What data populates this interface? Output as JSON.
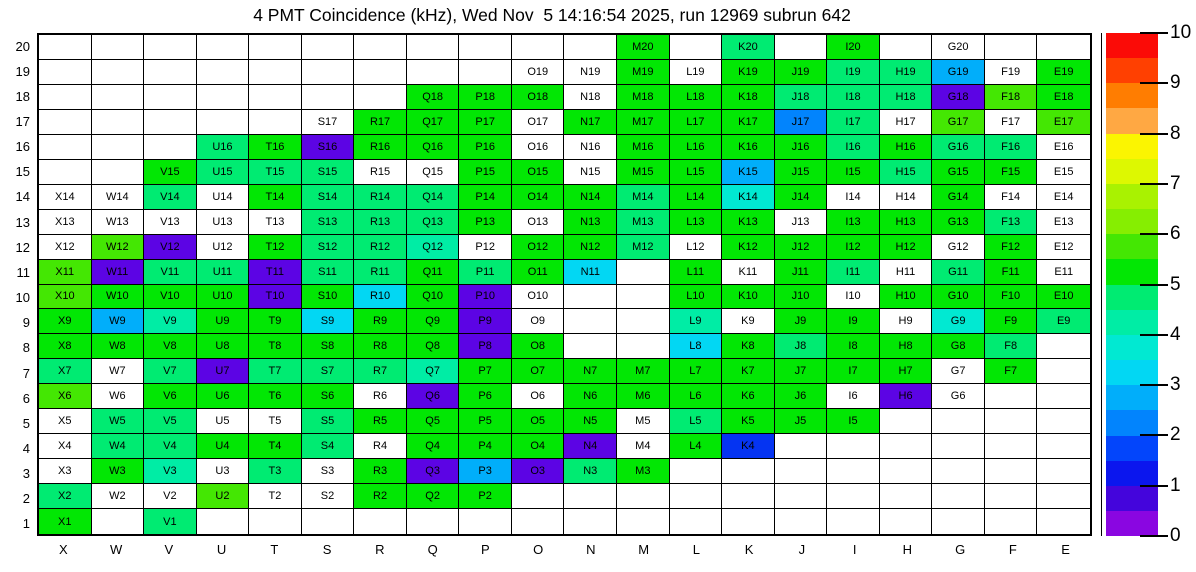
{
  "title": "4 PMT Coincidence (kHz), Wed Nov  5 14:16:54 2025, run 12969 subrun 642",
  "chart_data": {
    "type": "heatmap",
    "title": "4 PMT Coincidence (kHz), Wed Nov  5 14:16:54 2025, run 12969 subrun 642",
    "columns": [
      "X",
      "W",
      "V",
      "U",
      "T",
      "S",
      "R",
      "Q",
      "P",
      "O",
      "N",
      "M",
      "L",
      "K",
      "J",
      "I",
      "H",
      "G",
      "F",
      "E"
    ],
    "rows": [
      20,
      19,
      18,
      17,
      16,
      15,
      14,
      13,
      12,
      11,
      10,
      9,
      8,
      7,
      6,
      5,
      4,
      3,
      2,
      1
    ],
    "colorbar": {
      "min": 0,
      "max": 10,
      "ticks": [
        10,
        9,
        8,
        7,
        6,
        5,
        4,
        3,
        2,
        1,
        0
      ],
      "palette_bottom_to_top": [
        "#8a06e1",
        "#4405dc",
        "#0b16ee",
        "#0345fb",
        "#0284fd",
        "#01aefa",
        "#02d7f3",
        "#01e9d2",
        "#00eda5",
        "#00eb72",
        "#02e704",
        "#44e703",
        "#86ee01",
        "#a9f201",
        "#ddf801",
        "#fbf501",
        "#ffa843",
        "#ff7d01",
        "#ff4001",
        "#fb0b07"
      ]
    },
    "colors": {
      "g": "#02e704",
      "g2": "#44e703",
      "sg": "#00eb72",
      "mint": "#00eda5",
      "teal": "#01e9d2",
      "cyan": "#02d7f3",
      "lblue": "#01aefa",
      "blue": "#0284fd",
      "dblue": "#0534f2",
      "purple": "#5c04e4",
      "w": "#ffffff"
    },
    "color_values_kHz": {
      "g": 5.25,
      "g2": 5.75,
      "sg": 4.75,
      "mint": 4.25,
      "teal": 3.75,
      "cyan": 3.25,
      "lblue": 2.75,
      "blue": 2.25,
      "dblue": 1.75,
      "purple": 0.25,
      "w": 0
    },
    "cells": [
      [
        null,
        null,
        null,
        null,
        null,
        null,
        null,
        null,
        null,
        null,
        null,
        [
          "M20",
          "g"
        ],
        null,
        [
          "K20",
          "sg"
        ],
        null,
        [
          "I20",
          "g"
        ],
        null,
        [
          "G20",
          "w"
        ],
        null,
        null
      ],
      [
        null,
        null,
        null,
        null,
        null,
        null,
        null,
        null,
        null,
        [
          "O19",
          "w"
        ],
        [
          "N19",
          "w"
        ],
        [
          "M19",
          "g"
        ],
        [
          "L19",
          "w"
        ],
        [
          "K19",
          "g"
        ],
        [
          "J19",
          "g"
        ],
        [
          "I19",
          "sg"
        ],
        [
          "H19",
          "sg"
        ],
        [
          "G19",
          "lblue"
        ],
        [
          "F19",
          "w"
        ],
        [
          "E19",
          "g"
        ]
      ],
      [
        null,
        null,
        null,
        null,
        null,
        null,
        null,
        [
          "Q18",
          "g"
        ],
        [
          "P18",
          "g"
        ],
        [
          "O18",
          "g"
        ],
        [
          "N18",
          "w"
        ],
        [
          "M18",
          "g"
        ],
        [
          "L18",
          "g"
        ],
        [
          "K18",
          "g"
        ],
        [
          "J18",
          "sg"
        ],
        [
          "I18",
          "sg"
        ],
        [
          "H18",
          "sg"
        ],
        [
          "G18",
          "purple"
        ],
        [
          "F18",
          "g2"
        ],
        [
          "E18",
          "g"
        ]
      ],
      [
        null,
        null,
        null,
        null,
        null,
        [
          "S17",
          "w"
        ],
        [
          "R17",
          "g"
        ],
        [
          "Q17",
          "g"
        ],
        [
          "P17",
          "g"
        ],
        [
          "O17",
          "w"
        ],
        [
          "N17",
          "g"
        ],
        [
          "M17",
          "g"
        ],
        [
          "L17",
          "g"
        ],
        [
          "K17",
          "g"
        ],
        [
          "J17",
          "blue"
        ],
        [
          "I17",
          "sg"
        ],
        [
          "H17",
          "w"
        ],
        [
          "G17",
          "g2"
        ],
        [
          "F17",
          "w"
        ],
        [
          "E17",
          "g2"
        ]
      ],
      [
        null,
        null,
        null,
        [
          "U16",
          "sg"
        ],
        [
          "T16",
          "g"
        ],
        [
          "S16",
          "purple"
        ],
        [
          "R16",
          "g"
        ],
        [
          "Q16",
          "g"
        ],
        [
          "P16",
          "g"
        ],
        [
          "O16",
          "w"
        ],
        [
          "N16",
          "w"
        ],
        [
          "M16",
          "g"
        ],
        [
          "L16",
          "g"
        ],
        [
          "K16",
          "g"
        ],
        [
          "J16",
          "g"
        ],
        [
          "I16",
          "sg"
        ],
        [
          "H16",
          "g"
        ],
        [
          "G16",
          "sg"
        ],
        [
          "F16",
          "sg"
        ],
        [
          "E16",
          "w"
        ]
      ],
      [
        null,
        null,
        [
          "V15",
          "g"
        ],
        [
          "U15",
          "sg"
        ],
        [
          "T15",
          "sg"
        ],
        [
          "S15",
          "sg"
        ],
        [
          "R15",
          "w"
        ],
        [
          "Q15",
          "w"
        ],
        [
          "P15",
          "g"
        ],
        [
          "O15",
          "g"
        ],
        [
          "N15",
          "w"
        ],
        [
          "M15",
          "g"
        ],
        [
          "L15",
          "g"
        ],
        [
          "K15",
          "lblue"
        ],
        [
          "J15",
          "g"
        ],
        [
          "I15",
          "g"
        ],
        [
          "H15",
          "sg"
        ],
        [
          "G15",
          "g"
        ],
        [
          "F15",
          "g"
        ],
        [
          "E15",
          "w"
        ]
      ],
      [
        [
          "X14",
          "w"
        ],
        [
          "W14",
          "w"
        ],
        [
          "V14",
          "sg"
        ],
        [
          "U14",
          "w"
        ],
        [
          "T14",
          "g"
        ],
        [
          "S14",
          "sg"
        ],
        [
          "R14",
          "sg"
        ],
        [
          "Q14",
          "sg"
        ],
        [
          "P14",
          "g"
        ],
        [
          "O14",
          "g"
        ],
        [
          "N14",
          "g"
        ],
        [
          "M14",
          "sg"
        ],
        [
          "L14",
          "g"
        ],
        [
          "K14",
          "teal"
        ],
        [
          "J14",
          "g"
        ],
        [
          "I14",
          "w"
        ],
        [
          "H14",
          "w"
        ],
        [
          "G14",
          "g"
        ],
        [
          "F14",
          "w"
        ],
        [
          "E14",
          "w"
        ]
      ],
      [
        [
          "X13",
          "w"
        ],
        [
          "W13",
          "w"
        ],
        [
          "V13",
          "w"
        ],
        [
          "U13",
          "w"
        ],
        [
          "T13",
          "w"
        ],
        [
          "S13",
          "sg"
        ],
        [
          "R13",
          "sg"
        ],
        [
          "Q13",
          "sg"
        ],
        [
          "P13",
          "g"
        ],
        [
          "O13",
          "w"
        ],
        [
          "N13",
          "g"
        ],
        [
          "M13",
          "sg"
        ],
        [
          "L13",
          "g"
        ],
        [
          "K13",
          "g"
        ],
        [
          "J13",
          "w"
        ],
        [
          "I13",
          "g"
        ],
        [
          "H13",
          "g"
        ],
        [
          "G13",
          "g"
        ],
        [
          "F13",
          "sg"
        ],
        [
          "E13",
          "w"
        ]
      ],
      [
        [
          "X12",
          "w"
        ],
        [
          "W12",
          "g2"
        ],
        [
          "V12",
          "purple"
        ],
        [
          "U12",
          "w"
        ],
        [
          "T12",
          "g"
        ],
        [
          "S12",
          "sg"
        ],
        [
          "R12",
          "sg"
        ],
        [
          "Q12",
          "mint"
        ],
        [
          "P12",
          "w"
        ],
        [
          "O12",
          "g"
        ],
        [
          "N12",
          "g"
        ],
        [
          "M12",
          "sg"
        ],
        [
          "L12",
          "w"
        ],
        [
          "K12",
          "g"
        ],
        [
          "J12",
          "g"
        ],
        [
          "I12",
          "g"
        ],
        [
          "H12",
          "g"
        ],
        [
          "G12",
          "w"
        ],
        [
          "F12",
          "g"
        ],
        [
          "E12",
          "w"
        ]
      ],
      [
        [
          "X11",
          "g2"
        ],
        [
          "W11",
          "purple"
        ],
        [
          "V11",
          "sg"
        ],
        [
          "U11",
          "sg"
        ],
        [
          "T11",
          "purple"
        ],
        [
          "S11",
          "sg"
        ],
        [
          "R11",
          "sg"
        ],
        [
          "Q11",
          "g"
        ],
        [
          "P11",
          "sg"
        ],
        [
          "O11",
          "g"
        ],
        [
          "N11",
          "cyan"
        ],
        null,
        [
          "L11",
          "g"
        ],
        [
          "K11",
          "w"
        ],
        [
          "J11",
          "g"
        ],
        [
          "I11",
          "sg"
        ],
        [
          "H11",
          "w"
        ],
        [
          "G11",
          "sg"
        ],
        [
          "F11",
          "g"
        ],
        [
          "E11",
          "w"
        ]
      ],
      [
        [
          "X10",
          "g2"
        ],
        [
          "W10",
          "g"
        ],
        [
          "V10",
          "g"
        ],
        [
          "U10",
          "g"
        ],
        [
          "T10",
          "purple"
        ],
        [
          "S10",
          "g"
        ],
        [
          "R10",
          "cyan"
        ],
        [
          "Q10",
          "g"
        ],
        [
          "P10",
          "purple"
        ],
        [
          "O10",
          "w"
        ],
        null,
        null,
        [
          "L10",
          "g"
        ],
        [
          "K10",
          "g"
        ],
        [
          "J10",
          "g"
        ],
        [
          "I10",
          "w"
        ],
        [
          "H10",
          "g"
        ],
        [
          "G10",
          "g"
        ],
        [
          "F10",
          "g"
        ],
        [
          "E10",
          "g"
        ]
      ],
      [
        [
          "X9",
          "g"
        ],
        [
          "W9",
          "lblue"
        ],
        [
          "V9",
          "mint"
        ],
        [
          "U9",
          "g"
        ],
        [
          "T9",
          "g"
        ],
        [
          "S9",
          "cyan"
        ],
        [
          "R9",
          "g"
        ],
        [
          "Q9",
          "g"
        ],
        [
          "P9",
          "purple"
        ],
        [
          "O9",
          "w"
        ],
        null,
        null,
        [
          "L9",
          "mint"
        ],
        [
          "K9",
          "w"
        ],
        [
          "J9",
          "g"
        ],
        [
          "I9",
          "g"
        ],
        [
          "H9",
          "w"
        ],
        [
          "G9",
          "teal"
        ],
        [
          "F9",
          "g"
        ],
        [
          "E9",
          "sg"
        ]
      ],
      [
        [
          "X8",
          "g"
        ],
        [
          "W8",
          "g"
        ],
        [
          "V8",
          "g"
        ],
        [
          "U8",
          "g"
        ],
        [
          "T8",
          "g"
        ],
        [
          "S8",
          "g"
        ],
        [
          "R8",
          "g"
        ],
        [
          "Q8",
          "g"
        ],
        [
          "P8",
          "purple"
        ],
        [
          "O8",
          "g"
        ],
        null,
        null,
        [
          "L8",
          "cyan"
        ],
        [
          "K8",
          "g"
        ],
        [
          "J8",
          "sg"
        ],
        [
          "I8",
          "g"
        ],
        [
          "H8",
          "g"
        ],
        [
          "G8",
          "g"
        ],
        [
          "F8",
          "sg"
        ],
        null
      ],
      [
        [
          "X7",
          "sg"
        ],
        [
          "W7",
          "w"
        ],
        [
          "V7",
          "sg"
        ],
        [
          "U7",
          "purple"
        ],
        [
          "T7",
          "sg"
        ],
        [
          "S7",
          "sg"
        ],
        [
          "R7",
          "sg"
        ],
        [
          "Q7",
          "mint"
        ],
        [
          "P7",
          "g"
        ],
        [
          "O7",
          "g"
        ],
        [
          "N7",
          "g"
        ],
        [
          "M7",
          "g"
        ],
        [
          "L7",
          "g"
        ],
        [
          "K7",
          "g"
        ],
        [
          "J7",
          "g"
        ],
        [
          "I7",
          "g"
        ],
        [
          "H7",
          "g"
        ],
        [
          "G7",
          "w"
        ],
        [
          "F7",
          "g"
        ],
        null
      ],
      [
        [
          "X6",
          "g2"
        ],
        [
          "W6",
          "w"
        ],
        [
          "V6",
          "g"
        ],
        [
          "U6",
          "g"
        ],
        [
          "T6",
          "g"
        ],
        [
          "S6",
          "g"
        ],
        [
          "R6",
          "w"
        ],
        [
          "Q6",
          "purple"
        ],
        [
          "P6",
          "g"
        ],
        [
          "O6",
          "w"
        ],
        [
          "N6",
          "g"
        ],
        [
          "M6",
          "g"
        ],
        [
          "L6",
          "g"
        ],
        [
          "K6",
          "g"
        ],
        [
          "J6",
          "g"
        ],
        [
          "I6",
          "w"
        ],
        [
          "H6",
          "purple"
        ],
        [
          "G6",
          "w"
        ],
        null,
        null
      ],
      [
        [
          "X5",
          "w"
        ],
        [
          "W5",
          "sg"
        ],
        [
          "V5",
          "sg"
        ],
        [
          "U5",
          "w"
        ],
        [
          "T5",
          "w"
        ],
        [
          "S5",
          "sg"
        ],
        [
          "R5",
          "g"
        ],
        [
          "Q5",
          "g"
        ],
        [
          "P5",
          "g"
        ],
        [
          "O5",
          "g"
        ],
        [
          "N5",
          "g"
        ],
        [
          "M5",
          "w"
        ],
        [
          "L5",
          "sg"
        ],
        [
          "K5",
          "g"
        ],
        [
          "J5",
          "g"
        ],
        [
          "I5",
          "g"
        ],
        null,
        null,
        null,
        null
      ],
      [
        [
          "X4",
          "w"
        ],
        [
          "W4",
          "sg"
        ],
        [
          "V4",
          "sg"
        ],
        [
          "U4",
          "g"
        ],
        [
          "T4",
          "g"
        ],
        [
          "S4",
          "sg"
        ],
        [
          "R4",
          "w"
        ],
        [
          "Q4",
          "g"
        ],
        [
          "P4",
          "g"
        ],
        [
          "O4",
          "g"
        ],
        [
          "N4",
          "purple"
        ],
        [
          "M4",
          "w"
        ],
        [
          "L4",
          "g"
        ],
        [
          "K4",
          "dblue"
        ],
        null,
        null,
        null,
        null,
        null,
        null
      ],
      [
        [
          "X3",
          "w"
        ],
        [
          "W3",
          "g"
        ],
        [
          "V3",
          "mint"
        ],
        [
          "U3",
          "w"
        ],
        [
          "T3",
          "sg"
        ],
        [
          "S3",
          "w"
        ],
        [
          "R3",
          "g"
        ],
        [
          "Q3",
          "purple"
        ],
        [
          "P3",
          "lblue"
        ],
        [
          "O3",
          "purple"
        ],
        [
          "N3",
          "sg"
        ],
        [
          "M3",
          "g"
        ],
        null,
        null,
        null,
        null,
        null,
        null,
        null,
        null
      ],
      [
        [
          "X2",
          "sg"
        ],
        [
          "W2",
          "w"
        ],
        [
          "V2",
          "w"
        ],
        [
          "U2",
          "g2"
        ],
        [
          "T2",
          "w"
        ],
        [
          "S2",
          "w"
        ],
        [
          "R2",
          "g"
        ],
        [
          "Q2",
          "g"
        ],
        [
          "P2",
          "g"
        ],
        null,
        null,
        null,
        null,
        null,
        null,
        null,
        null,
        null,
        null,
        null
      ],
      [
        [
          "X1",
          "g"
        ],
        null,
        [
          "V1",
          "sg"
        ],
        null,
        null,
        null,
        null,
        null,
        null,
        null,
        null,
        null,
        null,
        null,
        null,
        null,
        null,
        null,
        null,
        null
      ]
    ]
  }
}
